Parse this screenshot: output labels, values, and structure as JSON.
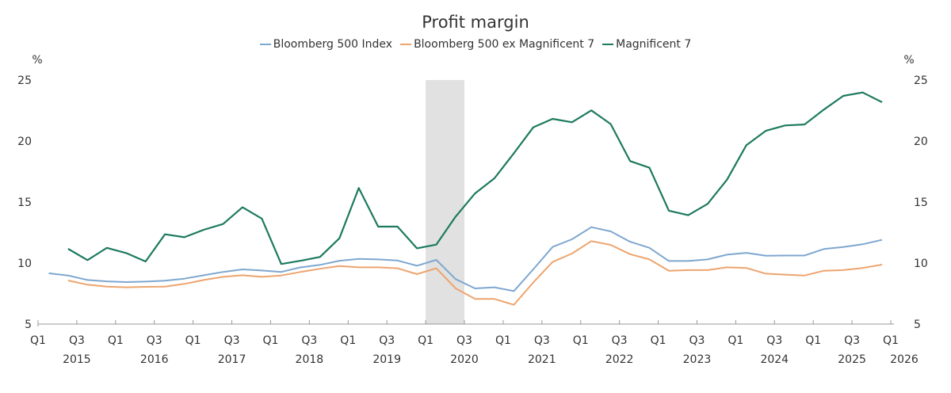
{
  "chart_data": {
    "type": "line",
    "title": "Profit margin",
    "ylabel_left": "%",
    "ylabel_right": "%",
    "ylim": [
      5,
      25
    ],
    "yticks": [
      5,
      10,
      15,
      20,
      25
    ],
    "legend_position": "top-center",
    "grid": false,
    "x_start": "2015 Q1",
    "x_frequency": "quarterly",
    "x_tick_labels": [
      "Q1",
      "Q3",
      "Q1",
      "Q3",
      "Q1",
      "Q3",
      "Q1",
      "Q3",
      "Q1",
      "Q3",
      "Q1",
      "Q3",
      "Q1",
      "Q3",
      "Q1",
      "Q3",
      "Q1",
      "Q3",
      "Q1",
      "Q3",
      "Q1",
      "Q3",
      "Q1"
    ],
    "x_year_labels": [
      "2015",
      "2016",
      "2017",
      "2018",
      "2019",
      "2020",
      "2021",
      "2022",
      "2023",
      "2024",
      "2025",
      "2026"
    ],
    "shaded_period": {
      "from_quarter_index": 20,
      "to_quarter_index": 22
    },
    "series": [
      {
        "name": "Bloomberg 500 Index",
        "color": "#7ea7cf",
        "start_index": 0,
        "values": [
          9.16,
          8.98,
          8.61,
          8.5,
          8.44,
          8.48,
          8.55,
          8.72,
          9.0,
          9.27,
          9.48,
          9.39,
          9.27,
          9.65,
          9.85,
          10.19,
          10.34,
          10.3,
          10.21,
          9.78,
          10.26,
          8.68,
          7.92,
          8.01,
          7.7,
          9.48,
          11.32,
          11.95,
          12.94,
          12.6,
          11.75,
          11.25,
          10.17,
          10.17,
          10.3,
          10.69,
          10.84,
          10.6,
          10.62,
          10.62,
          11.15,
          11.32,
          11.54,
          11.9
        ]
      },
      {
        "name": "Bloomberg 500 ex Magnificent 7",
        "color": "#eda46e",
        "start_index": 1,
        "values": [
          8.57,
          8.23,
          8.07,
          8.01,
          8.05,
          8.07,
          8.29,
          8.61,
          8.87,
          9.0,
          8.87,
          8.98,
          9.27,
          9.53,
          9.76,
          9.65,
          9.65,
          9.57,
          9.09,
          9.57,
          7.92,
          7.06,
          7.06,
          6.58,
          8.4,
          10.09,
          10.78,
          11.8,
          11.49,
          10.73,
          10.3,
          9.37,
          9.42,
          9.42,
          9.65,
          9.6,
          9.13,
          9.05,
          8.98,
          9.37,
          9.42,
          9.6,
          9.87
        ]
      },
      {
        "name": "Magnificent 7",
        "color": "#1d7a5f",
        "start_index": 1,
        "values": [
          11.17,
          10.24,
          11.25,
          10.82,
          10.13,
          12.36,
          12.12,
          12.73,
          13.2,
          14.57,
          13.64,
          9.92,
          10.19,
          10.5,
          12.03,
          16.15,
          12.99,
          12.99,
          11.21,
          11.51,
          13.81,
          15.71,
          16.95,
          19.0,
          21.12,
          21.82,
          21.54,
          22.51,
          21.39,
          18.36,
          17.81,
          14.29,
          13.92,
          14.85,
          16.84,
          19.66,
          20.84,
          21.28,
          21.36,
          22.58,
          23.7,
          23.98,
          23.18
        ]
      }
    ]
  }
}
